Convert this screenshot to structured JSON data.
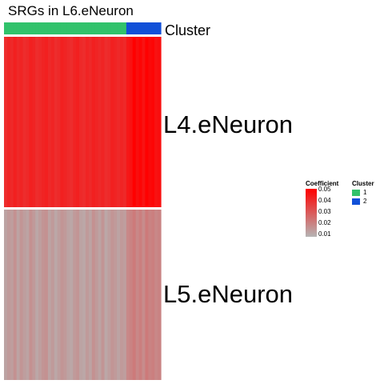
{
  "chart_data": {
    "type": "heatmap",
    "title": "SRGs in L6.eNeuron",
    "rows": [
      "L4.eNeuron",
      "L5.eNeuron"
    ],
    "annotation": {
      "name": "Cluster",
      "levels": [
        "1",
        "2"
      ],
      "colors": {
        "1": "#31c26b",
        "2": "#1050d8"
      },
      "columns": [
        "1",
        "1",
        "1",
        "1",
        "1",
        "1",
        "1",
        "1",
        "1",
        "1",
        "1",
        "1",
        "1",
        "1",
        "1",
        "1",
        "1",
        "1",
        "1",
        "1",
        "1",
        "1",
        "1",
        "1",
        "1",
        "1",
        "1",
        "1",
        "1",
        "1",
        "1",
        "1",
        "1",
        "1",
        "1",
        "1",
        "1",
        "1",
        "1",
        "2",
        "2",
        "2",
        "2",
        "2",
        "2",
        "2",
        "2",
        "2",
        "2",
        "2"
      ]
    },
    "values": [
      [
        0.04,
        0.042,
        0.041,
        0.043,
        0.041,
        0.042,
        0.04,
        0.041,
        0.043,
        0.042,
        0.04,
        0.041,
        0.042,
        0.043,
        0.041,
        0.042,
        0.04,
        0.041,
        0.043,
        0.042,
        0.041,
        0.04,
        0.042,
        0.043,
        0.041,
        0.04,
        0.042,
        0.041,
        0.043,
        0.042,
        0.041,
        0.042,
        0.04,
        0.041,
        0.043,
        0.042,
        0.041,
        0.042,
        0.041,
        0.045,
        0.046,
        0.05,
        0.047,
        0.049,
        0.046,
        0.05,
        0.048,
        0.049,
        0.046,
        0.047
      ],
      [
        0.014,
        0.016,
        0.015,
        0.018,
        0.014,
        0.017,
        0.015,
        0.014,
        0.018,
        0.016,
        0.013,
        0.015,
        0.017,
        0.018,
        0.014,
        0.016,
        0.013,
        0.015,
        0.017,
        0.016,
        0.014,
        0.013,
        0.016,
        0.017,
        0.014,
        0.013,
        0.016,
        0.014,
        0.018,
        0.016,
        0.014,
        0.017,
        0.013,
        0.015,
        0.017,
        0.016,
        0.014,
        0.016,
        0.015,
        0.02,
        0.021,
        0.023,
        0.02,
        0.022,
        0.019,
        0.023,
        0.021,
        0.022,
        0.02,
        0.021
      ]
    ],
    "colorscale": {
      "min": 0.01,
      "max": 0.05,
      "low_color": "#b5b5b5",
      "high_color": "#ff0000"
    },
    "legends": {
      "coefficient": {
        "title": "Coefficient",
        "ticks": [
          "0.05",
          "0.04",
          "0.03",
          "0.02",
          "0.01"
        ]
      },
      "cluster": {
        "title": "Cluster",
        "items": [
          "1",
          "2"
        ]
      }
    }
  }
}
